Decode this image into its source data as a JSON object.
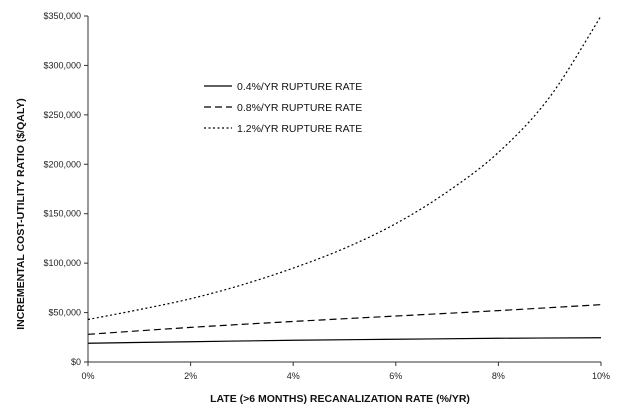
{
  "chart_data": {
    "type": "line",
    "xlabel": "LATE (>6 MONTHS) RECANALIZATION RATE (%/YR)",
    "ylabel": "INCREMENTAL COST-UTILITY RATIO ($/QALY)",
    "xlim": [
      0,
      10
    ],
    "ylim": [
      0,
      350000
    ],
    "x_ticks": [
      0,
      2,
      4,
      6,
      8,
      10
    ],
    "x_tick_labels": [
      "0%",
      "2%",
      "4%",
      "6%",
      "8%",
      "10%"
    ],
    "y_ticks": [
      0,
      50000,
      100000,
      150000,
      200000,
      250000,
      300000,
      350000
    ],
    "y_tick_labels": [
      "$0",
      "$50,000",
      "$100,000",
      "$150,000",
      "$200,000",
      "$250,000",
      "$300,000",
      "$350,000"
    ],
    "legend_position": "upper-left",
    "grid": false,
    "series": [
      {
        "name": "0.4%/YR RUPTURE RATE",
        "line_style": "solid",
        "x": [
          0,
          2,
          4,
          6,
          8,
          10
        ],
        "y": [
          19000,
          20500,
          22000,
          23000,
          24000,
          24500
        ]
      },
      {
        "name": "0.8%/YR RUPTURE RATE",
        "line_style": "dashed",
        "x": [
          0,
          2,
          4,
          6,
          8,
          10
        ],
        "y": [
          28000,
          35000,
          41000,
          46500,
          52000,
          58000
        ]
      },
      {
        "name": "1.2%/YR RUPTURE RATE",
        "line_style": "dotted",
        "x": [
          0,
          1,
          2,
          3,
          4,
          5,
          6,
          7,
          8,
          9,
          10
        ],
        "y": [
          43000,
          53000,
          64000,
          78000,
          95000,
          115000,
          140000,
          172000,
          212000,
          268000,
          350000
        ]
      }
    ]
  }
}
